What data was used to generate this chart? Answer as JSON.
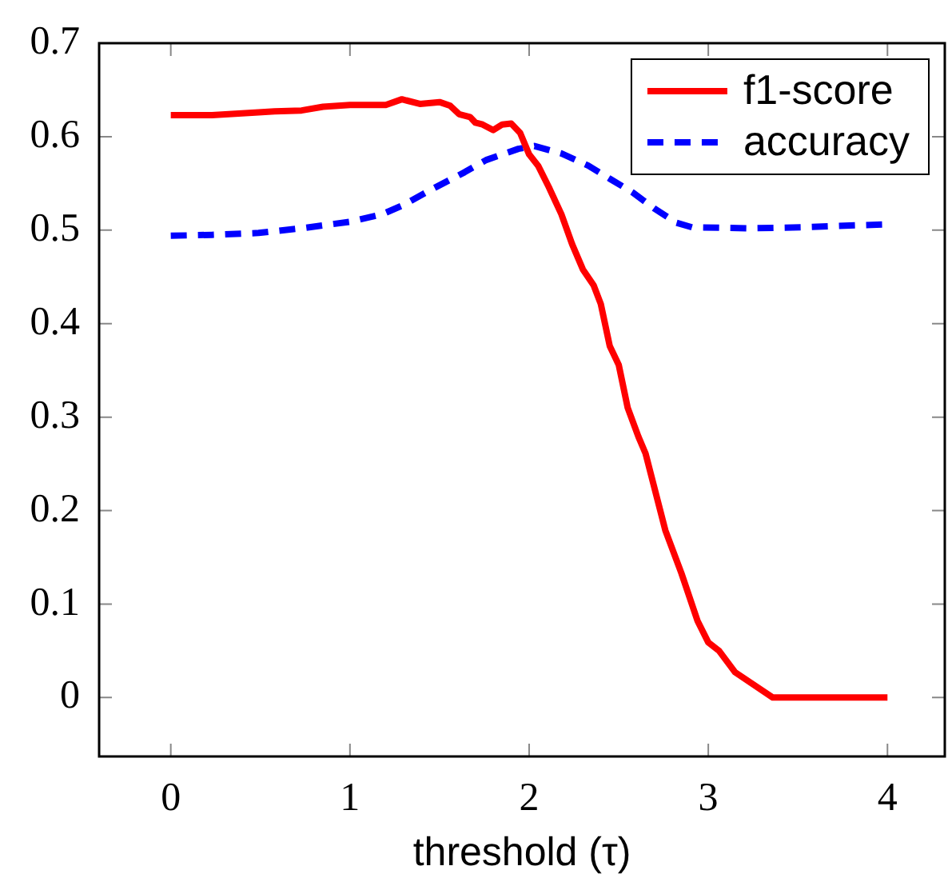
{
  "chart_data": {
    "type": "line",
    "xlabel": "threshold (τ)",
    "xlim": [
      -0.4,
      4.32
    ],
    "ylim": [
      -0.063,
      0.7
    ],
    "xticks": [
      0,
      1,
      2,
      3,
      4
    ],
    "yticks": [
      0,
      0.1,
      0.2,
      0.3,
      0.4,
      0.5,
      0.6,
      0.7
    ],
    "grid": false,
    "legend": "top right",
    "marker": "none",
    "series": [
      {
        "name": "f1-score",
        "color": "#ff0000",
        "line_style": "solid",
        "x": [
          0,
          0.23,
          0.49,
          0.58,
          0.73,
          0.85,
          1.0,
          1.2,
          1.29,
          1.39,
          1.5,
          1.56,
          1.61,
          1.67,
          1.7,
          1.74,
          1.8,
          1.85,
          1.9,
          1.95,
          2.0,
          2.05,
          2.11,
          2.18,
          2.24,
          2.3,
          2.36,
          2.4,
          2.45,
          2.5,
          2.55,
          2.61,
          2.65,
          2.76,
          2.85,
          2.94,
          3.0,
          3.06,
          3.15,
          3.36,
          4.0
        ],
        "values": [
          0.623,
          0.623,
          0.626,
          0.627,
          0.628,
          0.632,
          0.634,
          0.634,
          0.64,
          0.635,
          0.637,
          0.633,
          0.624,
          0.621,
          0.615,
          0.613,
          0.607,
          0.613,
          0.614,
          0.604,
          0.581,
          0.569,
          0.546,
          0.517,
          0.485,
          0.458,
          0.441,
          0.421,
          0.376,
          0.356,
          0.31,
          0.279,
          0.261,
          0.179,
          0.133,
          0.082,
          0.059,
          0.05,
          0.027,
          0,
          0
        ]
      },
      {
        "name": "accuracy",
        "color": "#0000ff",
        "line_style": "dashed",
        "x": [
          0,
          0.23,
          0.49,
          0.73,
          1.0,
          1.18,
          1.3,
          1.45,
          1.64,
          1.76,
          1.94,
          2.03,
          2.18,
          2.33,
          2.45,
          2.58,
          2.7,
          2.82,
          2.91,
          3.24,
          3.52,
          3.79,
          3.97
        ],
        "values": [
          0.494,
          0.495,
          0.497,
          0.502,
          0.509,
          0.517,
          0.527,
          0.543,
          0.562,
          0.575,
          0.587,
          0.59,
          0.582,
          0.569,
          0.555,
          0.54,
          0.523,
          0.508,
          0.503,
          0.502,
          0.503,
          0.505,
          0.506
        ]
      }
    ]
  }
}
